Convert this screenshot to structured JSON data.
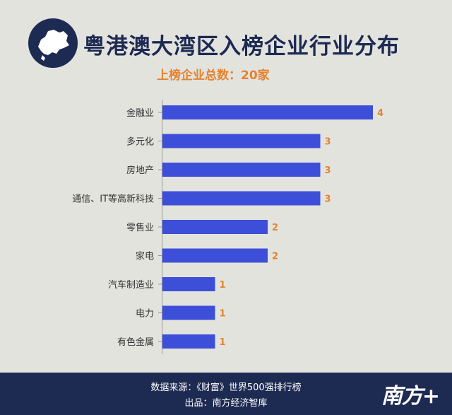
{
  "header": {
    "title": "粤港澳大湾区入榜企业行业分布",
    "subtitle": "上榜企业总数：20家"
  },
  "footer": {
    "source": "数据来源：《财富》世界500强排行榜",
    "producer": "出品：南方经济智库",
    "brand": "南方+"
  },
  "colors": {
    "bar": "#3d4fd8",
    "value_label": "#e5822f",
    "navy": "#1d2a52",
    "background": "#e3e3de"
  },
  "icons": {
    "logo": "guangdong-map-icon"
  },
  "chart_data": {
    "type": "bar",
    "orientation": "horizontal",
    "title": "粤港澳大湾区入榜企业行业分布",
    "subtitle": "上榜企业总数：20家",
    "categories": [
      "金融业",
      "多元化",
      "房地产",
      "通信、IT等高新科技",
      "零售业",
      "家电",
      "汽车制造业",
      "电力",
      "有色金属"
    ],
    "values": [
      4,
      3,
      3,
      3,
      2,
      2,
      1,
      1,
      1
    ],
    "xlim": [
      0,
      4
    ],
    "grid": false,
    "legend": "none",
    "data_labels": true
  }
}
